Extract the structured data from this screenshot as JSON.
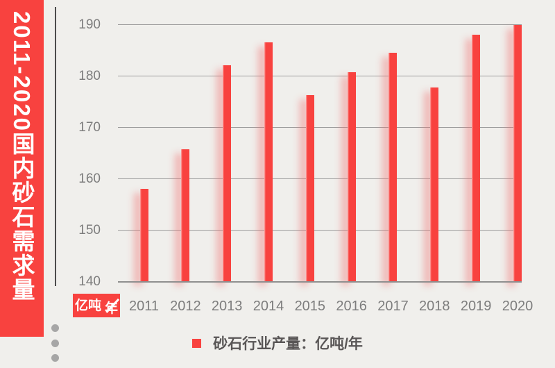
{
  "banner": {
    "title": "2011-2020国内砂石需求量",
    "bg_color": "#f8423f",
    "text_color": "#ffffff"
  },
  "axis_badge": {
    "numerator": "亿吨",
    "denominator": "年",
    "bg_color": "#f8423f"
  },
  "legend": {
    "label": "砂石行业产量：亿吨/年",
    "swatch_color": "#f8423f",
    "position": "bottom-center"
  },
  "decor": {
    "dot_icon_count": 3,
    "dot_color": "#a6a6a6"
  },
  "chart_data": {
    "type": "bar",
    "title": "2011-2020国内砂石需求量",
    "categories": [
      "2011",
      "2012",
      "2013",
      "2014",
      "2015",
      "2016",
      "2017",
      "2018",
      "2019",
      "2020"
    ],
    "values": [
      158.1,
      165.8,
      182.1,
      186.5,
      176.3,
      180.8,
      184.5,
      177.8,
      188.1,
      190
    ],
    "series_name": "砂石行业产量",
    "unit": "亿吨/年",
    "ylabel_badge": "亿吨/年",
    "ylim": [
      140,
      190
    ],
    "yticks": [
      140,
      150,
      160,
      170,
      180,
      190
    ],
    "bar_color": "#f8423f",
    "grid": true,
    "legend_position": "bottom"
  }
}
